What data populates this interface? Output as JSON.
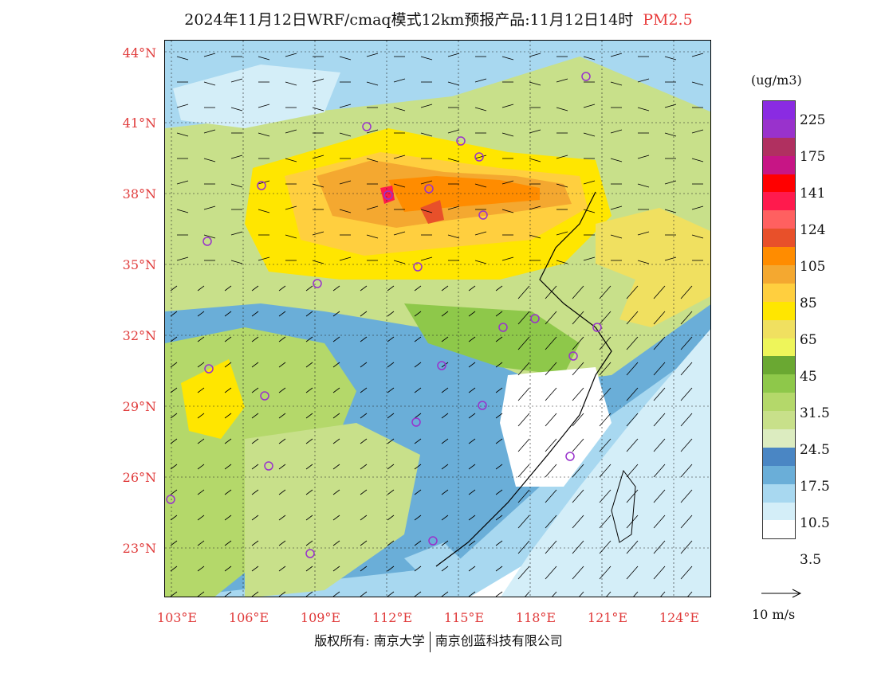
{
  "title": {
    "main": "2024年11月12日WRF/cmaq模式12km预报产品:11月12日14时",
    "species": "PM2.5"
  },
  "axes": {
    "lat_labels": [
      "44°N",
      "41°N",
      "38°N",
      "35°N",
      "32°N",
      "29°N",
      "26°N",
      "23°N"
    ],
    "lon_labels": [
      "103°E",
      "106°E",
      "109°E",
      "112°E",
      "115°E",
      "118°E",
      "121°E",
      "124°E"
    ]
  },
  "legend": {
    "unit": "(ug/m3)",
    "colors": [
      "#8a2be2",
      "#9932cc",
      "#b03060",
      "#c71585",
      "#ff0000",
      "#ff1a4d",
      "#ff6060",
      "#e8502a",
      "#ff8c00",
      "#f4a830",
      "#ffcf3f",
      "#ffe600",
      "#f0e060",
      "#eef55a",
      "#6aa832",
      "#8ec84a",
      "#b4d86a",
      "#c8e08a",
      "#dcecc0",
      "#4a86c4",
      "#6aaed8",
      "#a8d8f0",
      "#d4eef8",
      "#ffffff"
    ],
    "labels": [
      "225",
      "175",
      "141",
      "124",
      "105",
      "85",
      "65",
      "45",
      "31.5",
      "24.5",
      "17.5",
      "10.5",
      "3.5"
    ],
    "colors_meaning": "top to bottom"
  },
  "reference_vector": {
    "label": "10 m/s"
  },
  "footer": {
    "left": "版权所有: 南京大学",
    "right": "南京创蓝科技有限公司"
  }
}
